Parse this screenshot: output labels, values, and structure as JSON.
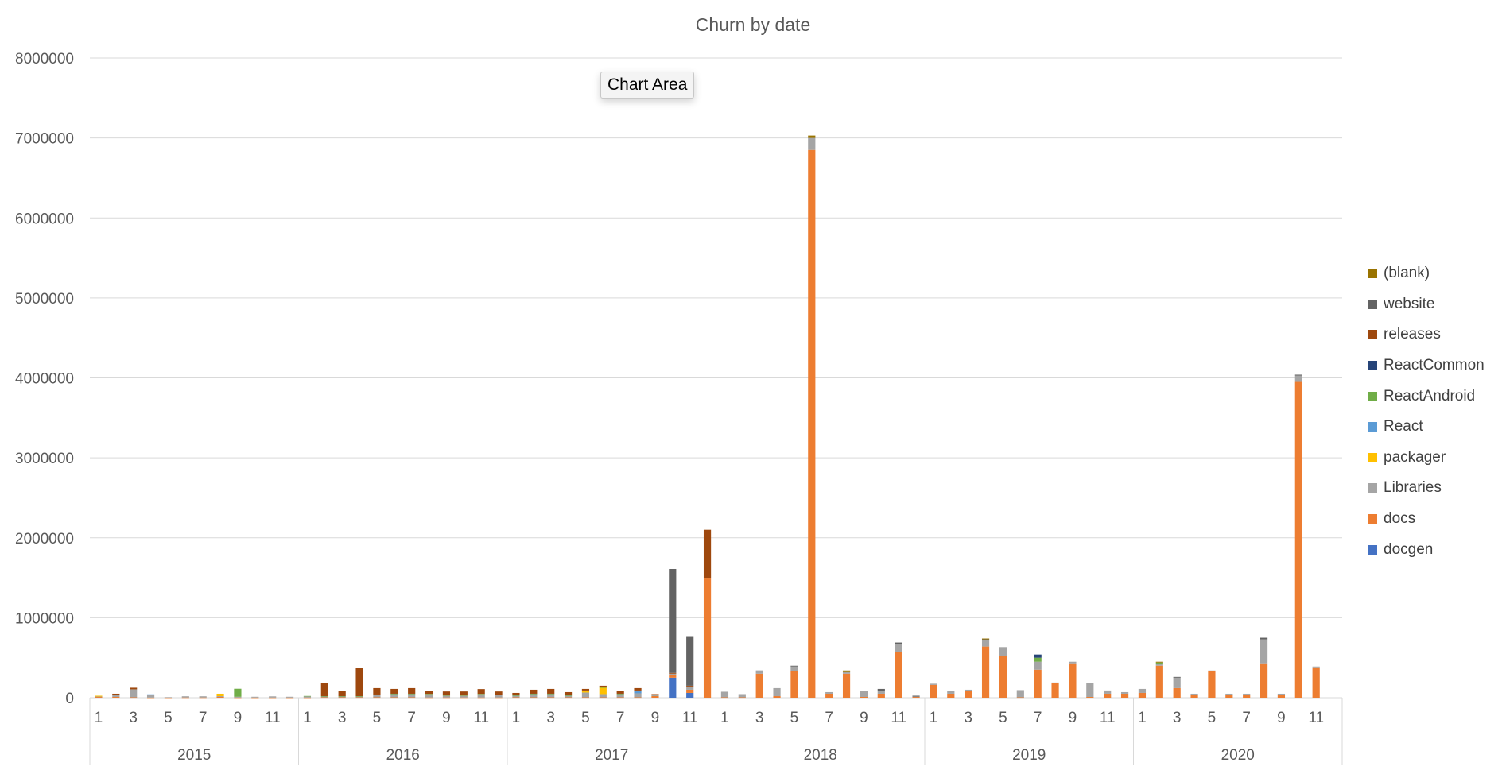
{
  "chart_data": {
    "type": "bar",
    "stacked": true,
    "title": "Churn by date",
    "xlabel": "",
    "ylabel": "",
    "ylim": [
      0,
      8000000
    ],
    "yticks": [
      "0",
      "1000000",
      "2000000",
      "3000000",
      "4000000",
      "5000000",
      "6000000",
      "7000000",
      "8000000"
    ],
    "grid": "horizontal",
    "legend_position": "right",
    "years": [
      {
        "label": "2015",
        "months": 12
      },
      {
        "label": "2016",
        "months": 12
      },
      {
        "label": "2017",
        "months": 12
      },
      {
        "label": "2018",
        "months": 12
      },
      {
        "label": "2019",
        "months": 12
      },
      {
        "label": "2020",
        "months": 11
      }
    ],
    "month_tick_labels": [
      "1",
      "3",
      "5",
      "7",
      "9",
      "11"
    ],
    "series": [
      {
        "name": "docgen",
        "color": "#4472c4",
        "values": [
          0,
          0,
          0,
          0,
          0,
          0,
          0,
          0,
          0,
          0,
          0,
          0,
          0,
          0,
          0,
          0,
          0,
          0,
          0,
          0,
          0,
          0,
          0,
          0,
          0,
          0,
          0,
          0,
          0,
          0,
          0,
          0,
          0,
          250000,
          60000,
          0,
          0,
          0,
          0,
          0,
          0,
          0,
          0,
          0,
          0,
          0,
          0,
          0,
          0,
          0,
          0,
          0,
          0,
          0,
          0,
          0,
          0,
          0,
          0,
          0,
          0,
          0,
          0,
          0,
          0,
          0,
          0,
          0,
          0,
          0,
          0
        ]
      },
      {
        "name": "docs",
        "color": "#ed7d31",
        "values": [
          10000,
          10000,
          5000,
          2000,
          2000,
          3000,
          3000,
          10000,
          2000,
          2000,
          2000,
          2000,
          2000,
          5000,
          5000,
          5000,
          5000,
          5000,
          5000,
          3000,
          3000,
          3000,
          3000,
          3000,
          5000,
          5000,
          5000,
          5000,
          5000,
          5000,
          5000,
          5000,
          20000,
          30000,
          40000,
          1500000,
          5000,
          5000,
          300000,
          20000,
          330000,
          6850000,
          50000,
          300000,
          10000,
          50000,
          570000,
          10000,
          160000,
          50000,
          80000,
          640000,
          520000,
          5000,
          350000,
          180000,
          430000,
          10000,
          50000,
          50000,
          60000,
          400000,
          120000,
          40000,
          330000,
          40000,
          40000,
          430000,
          30000,
          3950000,
          380000
        ]
      },
      {
        "name": "Libraries",
        "color": "#a5a5a5",
        "values": [
          5000,
          20000,
          100000,
          30000,
          5000,
          15000,
          15000,
          10000,
          10000,
          10000,
          15000,
          10000,
          15000,
          10000,
          10000,
          10000,
          30000,
          40000,
          40000,
          40000,
          20000,
          20000,
          40000,
          30000,
          20000,
          40000,
          40000,
          20000,
          60000,
          40000,
          40000,
          50000,
          10000,
          20000,
          40000,
          0,
          70000,
          40000,
          30000,
          100000,
          60000,
          150000,
          20000,
          20000,
          70000,
          30000,
          100000,
          5000,
          15000,
          30000,
          20000,
          80000,
          100000,
          90000,
          100000,
          10000,
          20000,
          170000,
          30000,
          20000,
          50000,
          20000,
          130000,
          10000,
          10000,
          10000,
          10000,
          300000,
          20000,
          80000,
          10000
        ]
      },
      {
        "name": "packager",
        "color": "#ffc000",
        "values": [
          10000,
          0,
          0,
          0,
          0,
          0,
          0,
          30000,
          0,
          0,
          0,
          0,
          0,
          0,
          0,
          0,
          0,
          0,
          0,
          0,
          0,
          0,
          0,
          0,
          0,
          0,
          0,
          0,
          20000,
          80000,
          0,
          0,
          0,
          0,
          0,
          0,
          0,
          0,
          0,
          0,
          0,
          0,
          0,
          0,
          0,
          0,
          0,
          0,
          0,
          0,
          0,
          0,
          0,
          0,
          0,
          0,
          0,
          0,
          0,
          0,
          0,
          0,
          0,
          0,
          0,
          0,
          0,
          0,
          0,
          0,
          0
        ]
      },
      {
        "name": "React",
        "color": "#5b9bd5",
        "values": [
          0,
          0,
          0,
          10000,
          0,
          0,
          0,
          0,
          0,
          0,
          0,
          0,
          0,
          0,
          0,
          0,
          0,
          0,
          0,
          0,
          0,
          0,
          0,
          0,
          0,
          0,
          0,
          0,
          0,
          0,
          0,
          30000,
          0,
          0,
          0,
          0,
          0,
          0,
          0,
          0,
          0,
          0,
          0,
          0,
          0,
          0,
          0,
          0,
          0,
          0,
          0,
          0,
          0,
          0,
          0,
          0,
          0,
          0,
          0,
          0,
          0,
          0,
          0,
          0,
          0,
          0,
          0,
          0,
          0,
          0,
          0
        ]
      },
      {
        "name": "ReactAndroid",
        "color": "#70ad47",
        "values": [
          0,
          0,
          0,
          0,
          0,
          0,
          0,
          0,
          100000,
          0,
          0,
          0,
          5000,
          5000,
          5000,
          5000,
          5000,
          5000,
          5000,
          5000,
          5000,
          5000,
          5000,
          5000,
          5000,
          5000,
          5000,
          5000,
          5000,
          5000,
          5000,
          5000,
          5000,
          0,
          0,
          0,
          0,
          0,
          0,
          0,
          0,
          0,
          0,
          0,
          0,
          0,
          0,
          0,
          0,
          0,
          0,
          0,
          0,
          0,
          50000,
          0,
          0,
          0,
          0,
          0,
          0,
          20000,
          0,
          0,
          0,
          0,
          0,
          0,
          0,
          0,
          0
        ]
      },
      {
        "name": "ReactCommon",
        "color": "#264478",
        "values": [
          0,
          0,
          0,
          0,
          0,
          0,
          0,
          0,
          0,
          0,
          0,
          0,
          0,
          0,
          0,
          0,
          0,
          0,
          0,
          0,
          0,
          0,
          0,
          0,
          0,
          0,
          0,
          0,
          0,
          0,
          0,
          0,
          0,
          0,
          0,
          0,
          0,
          0,
          0,
          0,
          0,
          0,
          0,
          0,
          0,
          0,
          0,
          0,
          0,
          0,
          0,
          0,
          0,
          0,
          40000,
          0,
          0,
          0,
          0,
          0,
          0,
          0,
          0,
          0,
          0,
          0,
          0,
          0,
          0,
          0,
          0
        ]
      },
      {
        "name": "releases",
        "color": "#9e480e",
        "values": [
          0,
          20000,
          20000,
          0,
          0,
          0,
          0,
          0,
          0,
          0,
          0,
          0,
          0,
          160000,
          60000,
          350000,
          80000,
          60000,
          70000,
          40000,
          50000,
          50000,
          60000,
          40000,
          30000,
          50000,
          60000,
          40000,
          20000,
          20000,
          30000,
          30000,
          10000,
          10000,
          10000,
          600000,
          0,
          0,
          0,
          0,
          0,
          0,
          0,
          0,
          0,
          0,
          0,
          0,
          0,
          0,
          0,
          0,
          0,
          0,
          0,
          0,
          0,
          0,
          0,
          0,
          0,
          0,
          0,
          0,
          0,
          0,
          0,
          0,
          0,
          0,
          0
        ]
      },
      {
        "name": "website",
        "color": "#636363",
        "values": [
          0,
          0,
          0,
          0,
          0,
          0,
          0,
          0,
          0,
          0,
          0,
          0,
          0,
          0,
          0,
          0,
          0,
          0,
          0,
          0,
          0,
          0,
          0,
          0,
          0,
          0,
          0,
          0,
          0,
          0,
          0,
          0,
          0,
          1300000,
          620000,
          0,
          0,
          0,
          10000,
          0,
          10000,
          0,
          0,
          0,
          0,
          30000,
          20000,
          10000,
          0,
          0,
          0,
          10000,
          10000,
          0,
          0,
          0,
          0,
          0,
          10000,
          0,
          0,
          0,
          10000,
          0,
          0,
          0,
          0,
          20000,
          0,
          10000,
          0
        ]
      },
      {
        "name": "(blank)",
        "color": "#997300",
        "values": [
          0,
          0,
          0,
          0,
          0,
          0,
          0,
          0,
          0,
          0,
          0,
          0,
          0,
          0,
          0,
          0,
          0,
          0,
          0,
          0,
          0,
          0,
          0,
          0,
          0,
          0,
          0,
          0,
          0,
          0,
          0,
          0,
          0,
          0,
          0,
          0,
          0,
          0,
          0,
          0,
          0,
          30000,
          0,
          20000,
          0,
          0,
          0,
          0,
          0,
          0,
          0,
          10000,
          0,
          0,
          0,
          0,
          0,
          0,
          0,
          0,
          0,
          10000,
          0,
          0,
          0,
          0,
          0,
          0,
          0,
          0,
          0
        ]
      }
    ]
  },
  "tooltip": {
    "label": "Chart Area"
  }
}
